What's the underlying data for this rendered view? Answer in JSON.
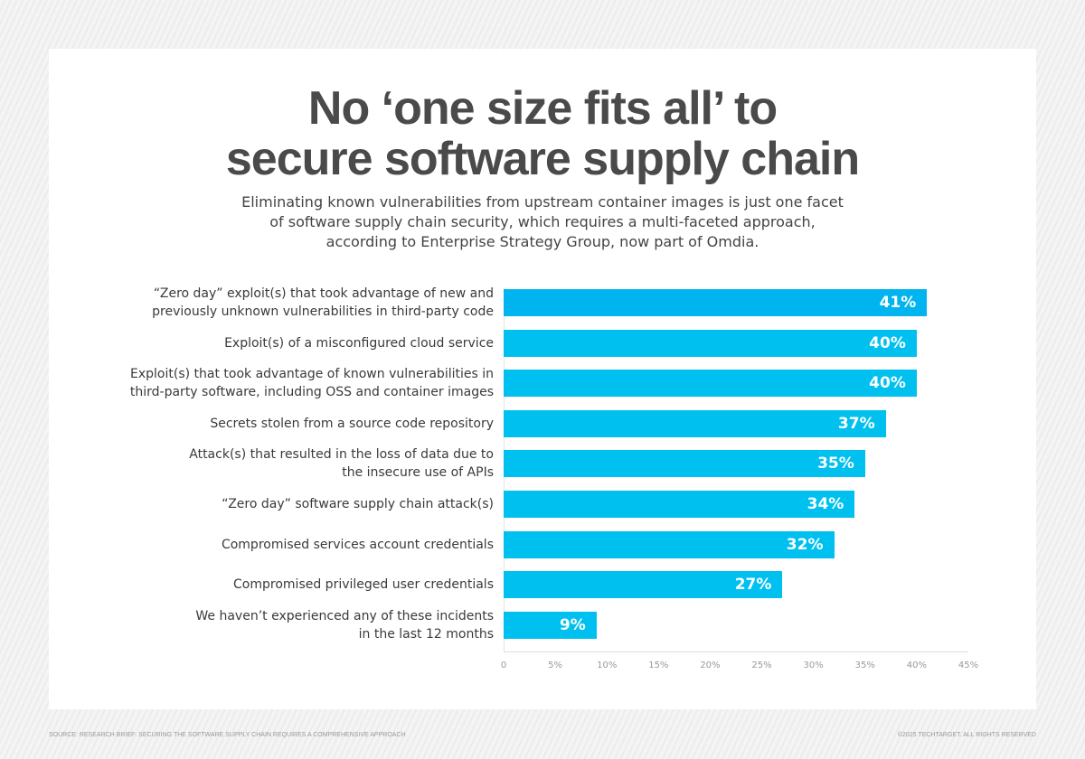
{
  "title_lines": [
    "No ‘one size fits all’ to",
    "secure software supply chain"
  ],
  "subtitle_lines": [
    "Eliminating known vulnerabilities from upstream container images is just one facet",
    "of software supply chain security, which requires a multi-faceted approach,",
    "according to Enterprise Strategy Group, now part of Omdia."
  ],
  "footer": {
    "source": "SOURCE: RESEARCH BRIEF: SECURING THE SOFTWARE SUPPLY CHAIN REQUIRES A COMPREHENSIVE APPROACH",
    "copyright": "©2025 TECHTARGET. ALL RIGHTS RESERVED"
  },
  "colors": {
    "bar": "#00c0f0",
    "bar_top": "#00b4f0"
  },
  "chart_data": {
    "type": "bar",
    "orientation": "horizontal",
    "categories": [
      "“Zero day” exploit(s) that took advantage of new and\npreviously unknown vulnerabilities in third-party code",
      "Exploit(s) of a misconfigured cloud  service",
      "Exploit(s) that took advantage of known vulnerabilities in\nthird-party software, including OSS and container images",
      "Secrets stolen from a source code repository",
      "Attack(s) that resulted in the loss of data due to\nthe insecure use of APIs",
      "“Zero day” software supply chain attack(s)",
      "Compromised services account credentials",
      "Compromised privileged user credentials",
      "We haven’t experienced any of these incidents\nin the last 12 months"
    ],
    "values": [
      41,
      40,
      40,
      37,
      35,
      34,
      32,
      27,
      9
    ],
    "value_labels": [
      "41%",
      "40%",
      "40%",
      "37%",
      "35%",
      "34%",
      "32%",
      "27%",
      "9%"
    ],
    "xlim": [
      0,
      45
    ],
    "ticks": [
      "0",
      "5%",
      "10%",
      "15%",
      "20%",
      "25%",
      "30%",
      "35%",
      "40%",
      "45%"
    ]
  }
}
